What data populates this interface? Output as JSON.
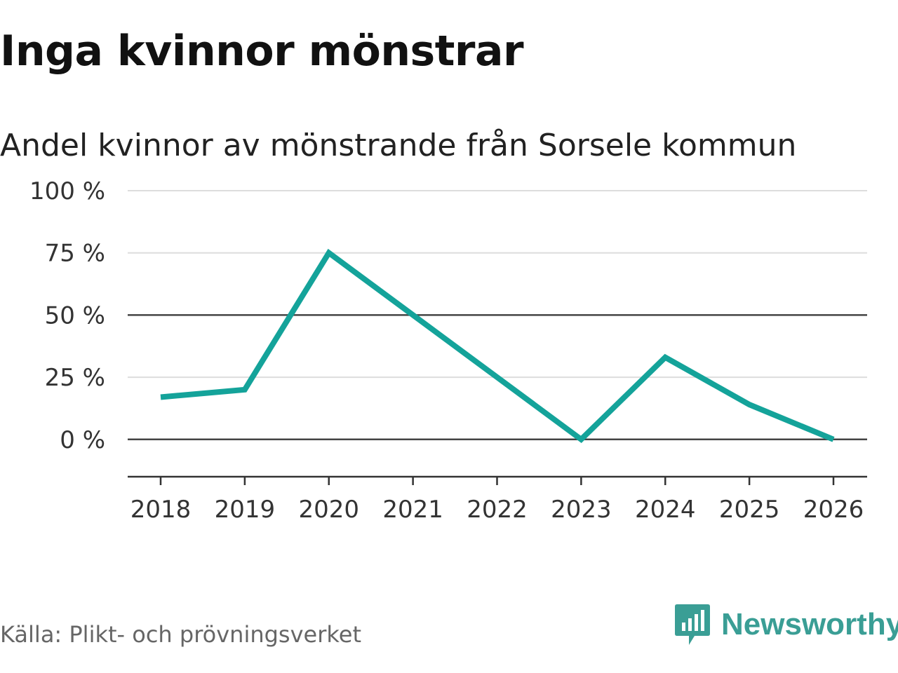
{
  "header": {
    "title": "Inga kvinnor mönstrar",
    "subtitle": "Andel kvinnor av mönstrande från Sorsele kommun"
  },
  "footer": {
    "source": "Källa: Plikt- och prövningsverket",
    "brand": "Newsworthy",
    "brand_icon": "newsworthy-logo-icon"
  },
  "colors": {
    "line": "#14a39a",
    "grid": "#dddddd",
    "baseline": "#444444",
    "brand": "#3a9e95"
  },
  "chart_data": {
    "type": "line",
    "title": "Inga kvinnor mönstrar",
    "subtitle": "Andel kvinnor av mönstrande från Sorsele kommun",
    "xlabel": "",
    "ylabel": "",
    "x": [
      "2018",
      "2019",
      "2020",
      "2021",
      "2022",
      "2023",
      "2024",
      "2025",
      "2026"
    ],
    "series": [
      {
        "name": "Andel kvinnor",
        "values": [
          17,
          20,
          75,
          50,
          25,
          0,
          33,
          14,
          0
        ]
      }
    ],
    "ylim": [
      -15,
      100
    ],
    "yticks": [
      0,
      25,
      50,
      75,
      100
    ],
    "ytick_labels": [
      "0 %",
      "25 %",
      "50 %",
      "75 %",
      "100 %"
    ],
    "highlight_lines": [
      0,
      50
    ],
    "grid": true
  }
}
